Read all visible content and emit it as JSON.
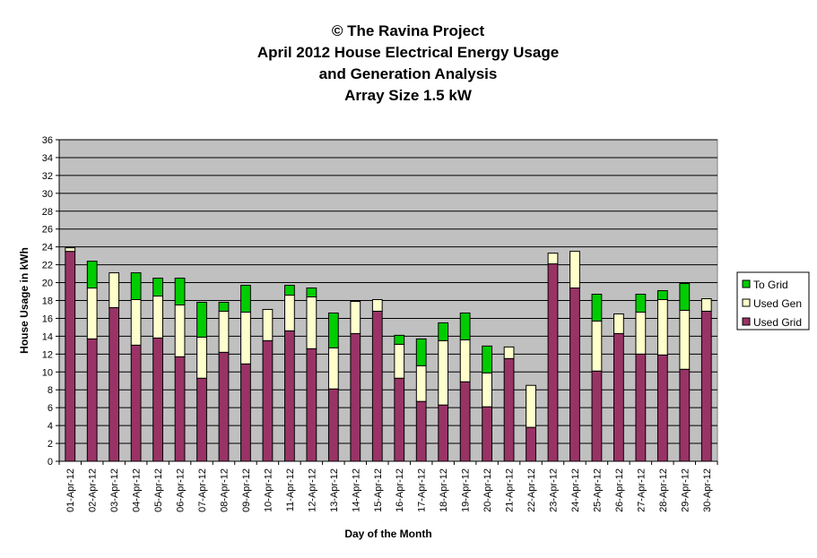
{
  "chart_data": {
    "type": "bar",
    "stacked": true,
    "title_lines": [
      "© The Ravina Project",
      "April 2012 House Electrical Energy Usage",
      "and Generation Analysis",
      "Array Size 1.5 kW"
    ],
    "xlabel": "Day of the Month",
    "ylabel": "House Usage in kWh",
    "ylim": [
      0,
      36
    ],
    "ytick_step": 2,
    "grid": true,
    "legend_position": "right",
    "categories": [
      "01-Apr-12",
      "02-Apr-12",
      "03-Apr-12",
      "04-Apr-12",
      "05-Apr-12",
      "06-Apr-12",
      "07-Apr-12",
      "08-Apr-12",
      "09-Apr-12",
      "10-Apr-12",
      "11-Apr-12",
      "12-Apr-12",
      "13-Apr-12",
      "14-Apr-12",
      "15-Apr-12",
      "16-Apr-12",
      "17-Apr-12",
      "18-Apr-12",
      "19-Apr-12",
      "20-Apr-12",
      "21-Apr-12",
      "22-Apr-12",
      "23-Apr-12",
      "24-Apr-12",
      "25-Apr-12",
      "26-Apr-12",
      "27-Apr-12",
      "28-Apr-12",
      "29-Apr-12",
      "30-Apr-12"
    ],
    "series": [
      {
        "name": "Used Grid",
        "color": "#993366",
        "values": [
          23.5,
          13.7,
          17.2,
          13.0,
          13.8,
          11.7,
          9.3,
          12.2,
          10.9,
          13.5,
          14.6,
          12.6,
          8.1,
          14.3,
          16.8,
          9.3,
          6.7,
          6.3,
          8.9,
          6.1,
          11.5,
          3.8,
          22.1,
          19.4,
          10.1,
          14.3,
          12.0,
          11.9,
          10.3,
          16.8
        ]
      },
      {
        "name": "Used Gen",
        "color": "#ffffcc",
        "values": [
          0.4,
          5.7,
          3.9,
          5.1,
          4.7,
          5.8,
          4.6,
          4.6,
          5.8,
          3.5,
          4.0,
          5.8,
          4.6,
          3.6,
          1.3,
          3.8,
          4.0,
          7.2,
          4.7,
          3.8,
          1.3,
          4.7,
          1.2,
          4.1,
          5.6,
          2.2,
          4.7,
          6.2,
          6.6,
          1.4
        ]
      },
      {
        "name": "To Grid",
        "color": "#00cc00",
        "values": [
          0.0,
          3.0,
          0.0,
          3.0,
          2.0,
          3.0,
          3.9,
          1.0,
          3.0,
          0.0,
          1.1,
          1.0,
          3.9,
          0.0,
          0.0,
          1.0,
          3.0,
          2.0,
          3.0,
          3.0,
          0.0,
          0.0,
          0.0,
          0.0,
          3.0,
          0.0,
          2.0,
          1.0,
          3.0,
          0.0
        ]
      }
    ]
  }
}
